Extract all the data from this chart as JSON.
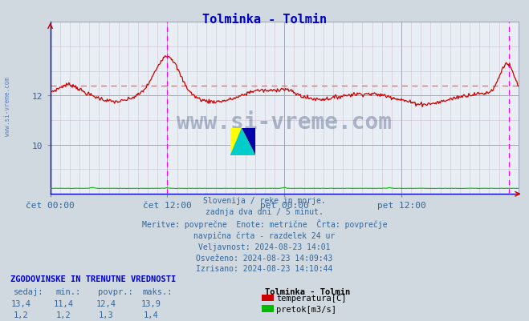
{
  "title": "Tolminka - Tolmin",
  "title_color": "#0000cc",
  "bg_color": "#d0d8e0",
  "plot_bg_color": "#e8eef4",
  "xlabel_ticks": [
    "čet 00:00",
    "čet 12:00",
    "pet 00:00",
    "pet 12:00"
  ],
  "ylabel_ticks": [
    10,
    12
  ],
  "ylim": [
    8.0,
    15.0
  ],
  "temp_avg": 12.4,
  "temp_color": "#cc0000",
  "temp_avg_line_color": "#ff6666",
  "flow_color": "#00bb00",
  "magenta_vlines_x": [
    0.5,
    1.958
  ],
  "watermark_text": "www.si-vreme.com",
  "watermark_color": "#1a3060",
  "watermark_alpha": 0.3,
  "info_lines": [
    "Slovenija / reke in morje.",
    "zadnja dva dni / 5 minut.",
    "Meritve: povprečne  Enote: metrične  Črta: povprečje",
    "navpična črta - razdelek 24 ur",
    "Veljavnost: 2024-08-23 14:01",
    "Osveženo: 2024-08-23 14:09:43",
    "Izrisano: 2024-08-23 14:10:44"
  ],
  "table_header": "ZGODOVINSKE IN TRENUTNE VREDNOSTI",
  "table_cols": [
    "sedaj:",
    "min.:",
    "povpr.:",
    "maks.:"
  ],
  "table_row1": [
    "13,4",
    "11,4",
    "12,4",
    "13,9"
  ],
  "table_row2": [
    "1,2",
    "1,2",
    "1,3",
    "1,4"
  ],
  "legend_title": "Tolminka - Tolmin",
  "legend_items": [
    {
      "label": "temperatura[C]",
      "color": "#cc0000"
    },
    {
      "label": "pretok[m3/s]",
      "color": "#00bb00"
    }
  ],
  "left_label": "www.si-vreme.com",
  "left_label_color": "#4466aa",
  "axis_spine_color": "#0000cc",
  "tick_color": "#336699"
}
